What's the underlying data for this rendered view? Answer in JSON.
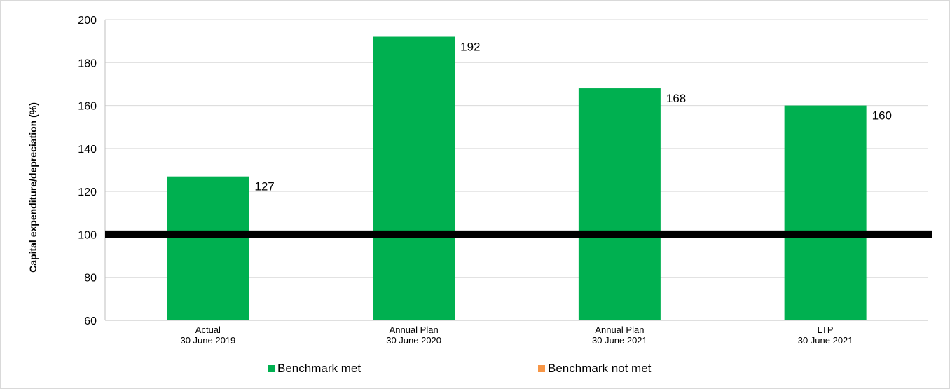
{
  "chart_data": {
    "type": "bar",
    "categories": [
      [
        "Actual",
        "30 June 2019"
      ],
      [
        "Annual Plan",
        "30 June 2020"
      ],
      [
        "Annual Plan",
        "30 June 2021"
      ],
      [
        "LTP",
        "30 June 2021"
      ]
    ],
    "values": [
      127,
      192,
      168,
      160
    ],
    "data_labels": [
      "127",
      "192",
      "168",
      "160"
    ],
    "ylabel": "Capital expenditure/depreciation (%)",
    "xlabel": "",
    "ylim": [
      60,
      200
    ],
    "yticks": [
      60,
      80,
      100,
      120,
      140,
      160,
      180,
      200
    ],
    "benchmark_line": 100,
    "grid": "horizontal",
    "legend_position": "bottom",
    "legend": [
      {
        "label": "Benchmark met",
        "color": "#00b050"
      },
      {
        "label": "Benchmark not met",
        "color": "#f79646"
      }
    ],
    "bar_color": "#00b050",
    "benchmark_color": "#000000"
  }
}
